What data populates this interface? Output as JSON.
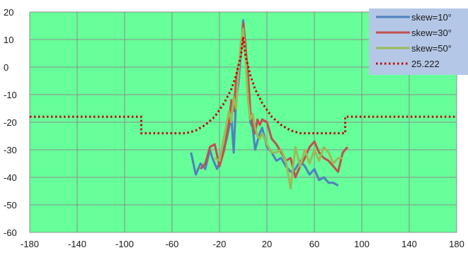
{
  "chart_data": {
    "type": "line",
    "title": "",
    "xlabel": "",
    "ylabel": "",
    "xlim": [
      -180,
      180
    ],
    "ylim": [
      -60,
      20
    ],
    "x_ticks": [
      -180,
      -140,
      -100,
      -60,
      -20,
      20,
      60,
      100,
      140,
      180
    ],
    "y_ticks": [
      20,
      10,
      0,
      -10,
      -20,
      -30,
      -40,
      -50,
      -60
    ],
    "grid": true,
    "plot_background": "#66ff99",
    "legend_position": "top-right",
    "series": [
      {
        "name": "skew=10°",
        "color": "#4f81bd",
        "style": "solid",
        "points": [
          [
            -44,
            -31
          ],
          [
            -40,
            -39
          ],
          [
            -36,
            -35
          ],
          [
            -32,
            -37
          ],
          [
            -28,
            -30
          ],
          [
            -26,
            -33
          ],
          [
            -22,
            -37
          ],
          [
            -18,
            -32
          ],
          [
            -14,
            -26
          ],
          [
            -12,
            -22
          ],
          [
            -10,
            -18
          ],
          [
            -8,
            -31
          ],
          [
            -6,
            -12
          ],
          [
            -4,
            -6
          ],
          [
            -2,
            5
          ],
          [
            0,
            17
          ],
          [
            2,
            8
          ],
          [
            4,
            -10
          ],
          [
            6,
            -20
          ],
          [
            8,
            -22
          ],
          [
            10,
            -30
          ],
          [
            12,
            -27
          ],
          [
            14,
            -24
          ],
          [
            16,
            -22
          ],
          [
            20,
            -29
          ],
          [
            24,
            -31
          ],
          [
            28,
            -34
          ],
          [
            32,
            -33
          ],
          [
            36,
            -36
          ],
          [
            40,
            -38
          ],
          [
            44,
            -37
          ],
          [
            48,
            -34
          ],
          [
            52,
            -36
          ],
          [
            56,
            -39
          ],
          [
            60,
            -37
          ],
          [
            64,
            -41
          ],
          [
            68,
            -40
          ],
          [
            72,
            -42
          ],
          [
            76,
            -42
          ],
          [
            80,
            -43
          ]
        ]
      },
      {
        "name": "skew=30°",
        "color": "#c0504d",
        "style": "solid",
        "points": [
          [
            -36,
            -37
          ],
          [
            -32,
            -35
          ],
          [
            -28,
            -29
          ],
          [
            -24,
            -28
          ],
          [
            -20,
            -36
          ],
          [
            -16,
            -30
          ],
          [
            -12,
            -20
          ],
          [
            -10,
            -12
          ],
          [
            -8,
            -16
          ],
          [
            -6,
            -5
          ],
          [
            -4,
            0
          ],
          [
            -2,
            6
          ],
          [
            0,
            16
          ],
          [
            2,
            7
          ],
          [
            4,
            -2
          ],
          [
            6,
            -16
          ],
          [
            8,
            -21
          ],
          [
            10,
            -24
          ],
          [
            12,
            -19
          ],
          [
            14,
            -21
          ],
          [
            16,
            -19
          ],
          [
            20,
            -20
          ],
          [
            24,
            -26
          ],
          [
            28,
            -28
          ],
          [
            32,
            -31
          ],
          [
            36,
            -34
          ],
          [
            40,
            -33
          ],
          [
            44,
            -40
          ],
          [
            48,
            -36
          ],
          [
            52,
            -33
          ],
          [
            56,
            -29
          ],
          [
            60,
            -27
          ],
          [
            64,
            -31
          ],
          [
            68,
            -33
          ],
          [
            72,
            -34
          ],
          [
            76,
            -36
          ],
          [
            80,
            -38
          ],
          [
            84,
            -31
          ],
          [
            88,
            -29
          ]
        ]
      },
      {
        "name": "skew=50°",
        "color": "#9bbb59",
        "style": "solid",
        "points": [
          [
            -24,
            -33
          ],
          [
            -20,
            -34
          ],
          [
            -16,
            -25
          ],
          [
            -12,
            -16
          ],
          [
            -10,
            -20
          ],
          [
            -8,
            -11
          ],
          [
            -6,
            -15
          ],
          [
            -4,
            -2
          ],
          [
            -2,
            9
          ],
          [
            0,
            14
          ],
          [
            2,
            3
          ],
          [
            4,
            -12
          ],
          [
            6,
            -19
          ],
          [
            8,
            -17
          ],
          [
            10,
            -22
          ],
          [
            12,
            -25
          ],
          [
            14,
            -26
          ],
          [
            16,
            -24
          ],
          [
            20,
            -28
          ],
          [
            24,
            -31
          ],
          [
            28,
            -31
          ],
          [
            32,
            -30
          ],
          [
            36,
            -34
          ],
          [
            40,
            -44
          ],
          [
            44,
            -29
          ],
          [
            48,
            -36
          ],
          [
            52,
            -30
          ],
          [
            56,
            -35
          ],
          [
            60,
            -30
          ],
          [
            64,
            -34
          ],
          [
            68,
            -29
          ],
          [
            72,
            -31
          ],
          [
            76,
            -35
          ],
          [
            80,
            -33
          ],
          [
            84,
            -33
          ]
        ]
      },
      {
        "name": "25.222",
        "color": "#c00000",
        "style": "dotted",
        "points": [
          [
            -180,
            -18
          ],
          [
            -86,
            -18
          ],
          [
            -86,
            -24
          ],
          [
            -48,
            -24
          ],
          [
            -40,
            -23
          ],
          [
            -32,
            -21
          ],
          [
            -24,
            -18
          ],
          [
            -16,
            -13
          ],
          [
            -10,
            -8
          ],
          [
            -6,
            -3
          ],
          [
            -2,
            4
          ],
          [
            0,
            11
          ],
          [
            2,
            4
          ],
          [
            6,
            -3
          ],
          [
            10,
            -8
          ],
          [
            16,
            -13
          ],
          [
            24,
            -18
          ],
          [
            32,
            -21
          ],
          [
            40,
            -23
          ],
          [
            48,
            -24
          ],
          [
            86,
            -24
          ],
          [
            86,
            -18
          ],
          [
            180,
            -18
          ]
        ]
      }
    ]
  }
}
